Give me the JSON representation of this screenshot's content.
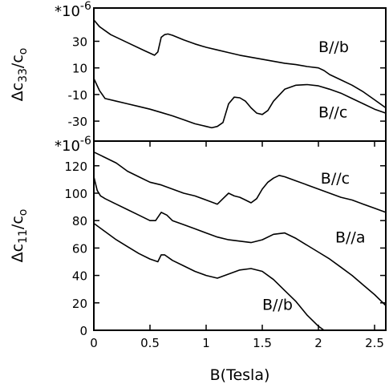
{
  "chart_data": [
    {
      "type": "line",
      "panel": "top",
      "ylabel_parts": {
        "base": "Δc",
        "sub": "33",
        "rest": "/c",
        "sub2": "o"
      },
      "scale_note": "*10",
      "scale_exp": "-6",
      "xlim": [
        0,
        2.6
      ],
      "ylim": [
        -45,
        55
      ],
      "y_ticks": [
        {
          "value": 30,
          "label": "30"
        },
        {
          "value": 10,
          "label": "10"
        },
        {
          "value": -10,
          "label": "-10"
        },
        {
          "value": -30,
          "label": "-30"
        }
      ],
      "series": [
        {
          "name": "B//b",
          "label_at": [
            2.0,
            26
          ],
          "x": [
            0,
            0.05,
            0.15,
            0.3,
            0.45,
            0.54,
            0.57,
            0.6,
            0.63,
            0.66,
            0.7,
            0.8,
            0.9,
            1.0,
            1.1,
            1.2,
            1.3,
            1.4,
            1.5,
            1.6,
            1.7,
            1.8,
            1.9,
            2.0,
            2.05,
            2.1,
            2.2,
            2.3,
            2.4,
            2.5,
            2.6
          ],
          "y": [
            46,
            41,
            35,
            29,
            23,
            19.5,
            22,
            33,
            35,
            35.5,
            34.5,
            31,
            28,
            25.5,
            23.5,
            21.5,
            19.5,
            18,
            16.5,
            15,
            13.5,
            12.5,
            11,
            10,
            8,
            5,
            1,
            -3,
            -8,
            -14,
            -20
          ]
        },
        {
          "name": "B//c",
          "label_at": [
            2.0,
            -23
          ],
          "x": [
            0,
            0.05,
            0.1,
            0.2,
            0.3,
            0.4,
            0.5,
            0.6,
            0.7,
            0.8,
            0.9,
            1.0,
            1.05,
            1.1,
            1.15,
            1.2,
            1.25,
            1.3,
            1.35,
            1.4,
            1.45,
            1.5,
            1.55,
            1.6,
            1.7,
            1.8,
            1.9,
            2.0,
            2.1,
            2.2,
            2.3,
            2.4,
            2.5,
            2.6
          ],
          "y": [
            2,
            -7,
            -13,
            -15,
            -17,
            -19,
            -21,
            -23.5,
            -26,
            -29,
            -32,
            -34,
            -35,
            -34,
            -31,
            -17,
            -12,
            -12.5,
            -15,
            -20,
            -24,
            -25,
            -22,
            -15,
            -6,
            -3,
            -2.5,
            -3.5,
            -6,
            -9,
            -13,
            -17,
            -21,
            -24
          ]
        }
      ]
    },
    {
      "type": "line",
      "panel": "bottom",
      "ylabel_parts": {
        "base": "Δc",
        "sub": "11",
        "rest": "/c",
        "sub2": "o"
      },
      "scale_note": "*10",
      "scale_exp": "-6",
      "xlabel": "B(Tesla)",
      "xlim": [
        0,
        2.6
      ],
      "ylim": [
        0,
        138
      ],
      "x_ticks": [
        {
          "value": 0,
          "label": "0"
        },
        {
          "value": 0.5,
          "label": "0.5"
        },
        {
          "value": 1,
          "label": "1"
        },
        {
          "value": 1.5,
          "label": "1.5"
        },
        {
          "value": 2,
          "label": "2"
        },
        {
          "value": 2.5,
          "label": "2.5"
        }
      ],
      "y_ticks": [
        {
          "value": 0,
          "label": "0"
        },
        {
          "value": 20,
          "label": "20"
        },
        {
          "value": 40,
          "label": "40"
        },
        {
          "value": 60,
          "label": "60"
        },
        {
          "value": 80,
          "label": "80"
        },
        {
          "value": 100,
          "label": "100"
        },
        {
          "value": 120,
          "label": "120"
        }
      ],
      "series": [
        {
          "name": "B//c",
          "label_at": [
            2.02,
            111
          ],
          "x": [
            0,
            0.1,
            0.2,
            0.3,
            0.4,
            0.5,
            0.6,
            0.7,
            0.8,
            0.9,
            1.0,
            1.1,
            1.15,
            1.2,
            1.25,
            1.3,
            1.35,
            1.4,
            1.45,
            1.5,
            1.55,
            1.6,
            1.65,
            1.7,
            1.8,
            1.9,
            2.0,
            2.1,
            2.2,
            2.3,
            2.4,
            2.5,
            2.6
          ],
          "y": [
            130,
            126,
            122,
            116,
            112,
            108,
            106,
            103,
            100,
            98,
            95,
            92,
            96,
            100,
            98,
            97,
            95,
            93,
            96,
            103,
            108,
            111,
            113,
            112,
            109,
            106,
            103,
            100,
            97,
            95,
            92,
            89,
            86
          ]
        },
        {
          "name": "B//a",
          "label_at": [
            2.15,
            68
          ],
          "x": [
            0,
            0.03,
            0.06,
            0.1,
            0.2,
            0.3,
            0.4,
            0.5,
            0.55,
            0.6,
            0.65,
            0.7,
            0.8,
            0.9,
            1.0,
            1.1,
            1.2,
            1.3,
            1.4,
            1.5,
            1.6,
            1.7,
            1.8,
            1.9,
            2.0,
            2.1,
            2.2,
            2.3,
            2.4,
            2.5,
            2.6
          ],
          "y": [
            112,
            102,
            98,
            96,
            92,
            88,
            84,
            80,
            80,
            86,
            84,
            80,
            77,
            74,
            71,
            68,
            66,
            65,
            64,
            66,
            70,
            71,
            67,
            62,
            57,
            52,
            46,
            40,
            33,
            26,
            18
          ]
        },
        {
          "name": "B//b",
          "label_at": [
            1.5,
            19
          ],
          "x": [
            0,
            0.1,
            0.2,
            0.3,
            0.4,
            0.5,
            0.57,
            0.6,
            0.63,
            0.7,
            0.8,
            0.9,
            1.0,
            1.1,
            1.2,
            1.3,
            1.4,
            1.5,
            1.6,
            1.7,
            1.8,
            1.9,
            2.0,
            2.05
          ],
          "y": [
            78,
            72,
            66,
            61,
            56,
            52,
            50,
            55,
            55,
            51,
            47,
            43,
            40,
            38,
            41,
            44,
            45,
            43,
            37,
            29,
            21,
            11,
            3,
            0
          ]
        }
      ]
    }
  ]
}
